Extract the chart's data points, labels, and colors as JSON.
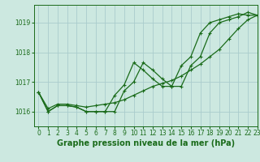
{
  "title": "",
  "xlabel": "Graphe pression niveau de la mer (hPa)",
  "xlabel_fontsize": 7,
  "background_color": "#cce8e0",
  "grid_color": "#aacccc",
  "line_color": "#1a6b1a",
  "marker": "+",
  "xlim": [
    -0.5,
    23
  ],
  "ylim": [
    1015.5,
    1019.6
  ],
  "yticks": [
    1016,
    1017,
    1018,
    1019
  ],
  "xticks": [
    0,
    1,
    2,
    3,
    4,
    5,
    6,
    7,
    8,
    9,
    10,
    11,
    12,
    13,
    14,
    15,
    16,
    17,
    18,
    19,
    20,
    21,
    22,
    23
  ],
  "series1": [
    1016.65,
    1016.0,
    1016.2,
    1016.2,
    1016.15,
    1016.0,
    1016.0,
    1016.0,
    1016.0,
    1016.7,
    1017.0,
    1017.65,
    1017.4,
    1017.1,
    1016.85,
    1016.85,
    1017.55,
    1017.85,
    1018.65,
    1019.0,
    1019.1,
    1019.2,
    1019.35,
    1019.25
  ],
  "series2": [
    1016.65,
    1016.0,
    1016.2,
    1016.2,
    1016.15,
    1016.0,
    1016.0,
    1016.0,
    1016.55,
    1016.9,
    1017.65,
    1017.4,
    1017.1,
    1016.85,
    1016.85,
    1017.55,
    1017.85,
    1018.65,
    1019.0,
    1019.1,
    1019.2,
    1019.3,
    1019.25,
    1019.25
  ],
  "series3": [
    1016.65,
    1016.1,
    1016.25,
    1016.25,
    1016.2,
    1016.15,
    1016.2,
    1016.25,
    1016.3,
    1016.4,
    1016.55,
    1016.7,
    1016.85,
    1016.95,
    1017.05,
    1017.2,
    1017.4,
    1017.6,
    1017.85,
    1018.1,
    1018.45,
    1018.8,
    1019.1,
    1019.25
  ]
}
